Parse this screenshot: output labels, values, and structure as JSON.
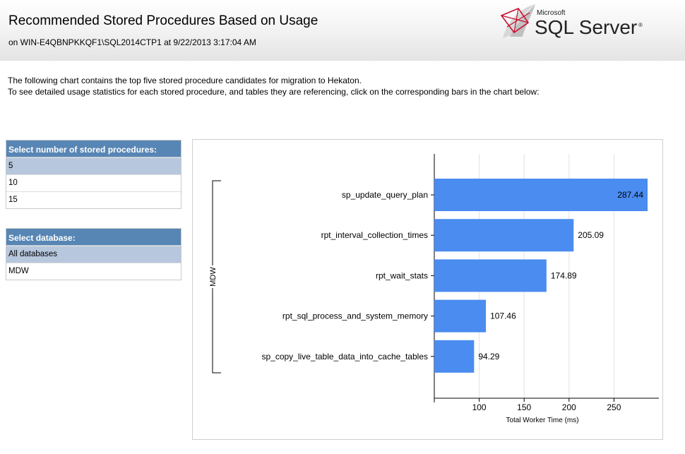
{
  "header": {
    "title": "Recommended Stored Procedures Based on Usage",
    "subtitle": "on WIN-E4QBNPKKQF1\\SQL2014CTP1 at 9/22/2013 3:17:04 AM",
    "logo_small": "Microsoft",
    "logo_main": "SQL Server",
    "logo_mark": "®"
  },
  "intro": {
    "line1": "The following chart contains the top five stored procedure candidates for migration to Hekaton.",
    "line2": "To see detailed usage statistics for each stored procedure, and tables they are referencing, click on the corresponding bars in the chart below:"
  },
  "count_panel": {
    "title": "Select number of stored procedures:",
    "options": [
      "5",
      "10",
      "15"
    ],
    "selected": "5"
  },
  "db_panel": {
    "title": "Select database:",
    "options": [
      "All databases",
      "MDW"
    ],
    "selected": "All databases"
  },
  "chart_data": {
    "type": "bar",
    "orientation": "horizontal",
    "categories": [
      "sp_update_query_plan",
      "rpt_interval_collection_times",
      "rpt_wait_stats",
      "rpt_sql_process_and_system_memory",
      "sp_copy_live_table_data_into_cache_tables"
    ],
    "values": [
      287.44,
      205.09,
      174.89,
      107.46,
      94.29
    ],
    "value_labels": [
      "287.44",
      "205.09",
      "174.89",
      "107.46",
      "94.29"
    ],
    "group_label": "MDW",
    "xlabel": "Total Worker Time (ms)",
    "xlim": [
      50,
      300
    ],
    "xticks": [
      100,
      150,
      200,
      250
    ],
    "xtick_labels": [
      "100",
      "150",
      "200",
      "250"
    ],
    "grid": true,
    "bar_color": "#4a8cf0"
  }
}
